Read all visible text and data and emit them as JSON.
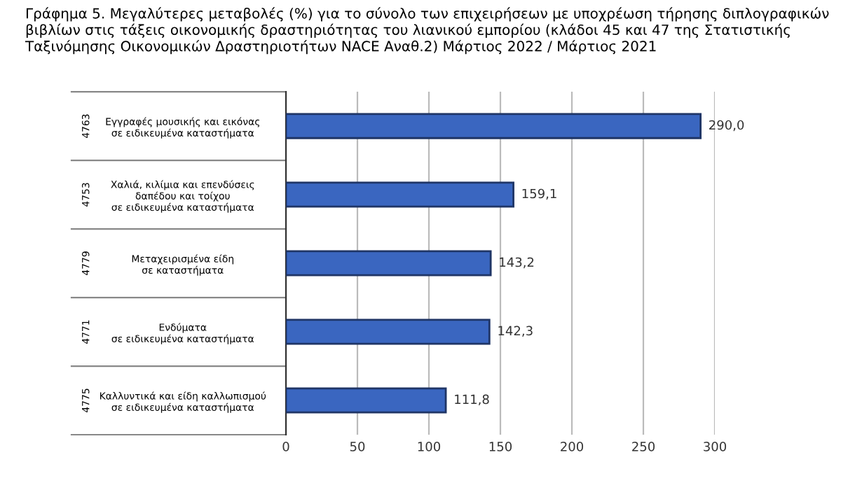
{
  "chart_data": {
    "type": "bar",
    "orientation": "horizontal",
    "title": "Γράφημα 5. Μεγαλύτερες μεταβολές (%) για το σύνολο των επιχειρήσεων με υποχρέωση τήρησης διπλογραφικών βιβλίων στις τάξεις οικονομικής δραστηριότητας του λιανικού εμπορίου (κλάδοι 45 και 47 της Στατιστικής Ταξινόμησης Οικονομικών Δραστηριοτήτων NACE Αναθ.2) Μάρτιος 2022 / Μάρτιος 2021",
    "categories": [
      "Εγγραφές μουσικής και εικόνας\nσε ειδικευμένα καταστήματα",
      "Χαλιά, κιλίμια και επενδύσεις\nδαπέδου και τοίχου\nσε ειδικευμένα καταστήματα",
      "Μεταχειρισμένα είδη\nσε καταστήματα",
      "Ενδύματα\nσε ειδικευμένα καταστήματα",
      "Καλλυντικά και είδη καλλωπισμού\nσε ειδικευμένα καταστήματα"
    ],
    "values": [
      290.0,
      159.1,
      143.2,
      142.3,
      111.8
    ],
    "value_labels": [
      "290,0",
      "159,1",
      "143,2",
      "142,3",
      "111,8"
    ],
    "color": "#3a66c0",
    "xlim": [
      0,
      300
    ],
    "xticks": [
      0,
      50,
      100,
      150,
      200,
      250,
      300
    ],
    "grid": "x",
    "legend": false,
    "annotations": [
      "4763",
      "4753",
      "4779",
      "4771",
      "4775"
    ]
  }
}
